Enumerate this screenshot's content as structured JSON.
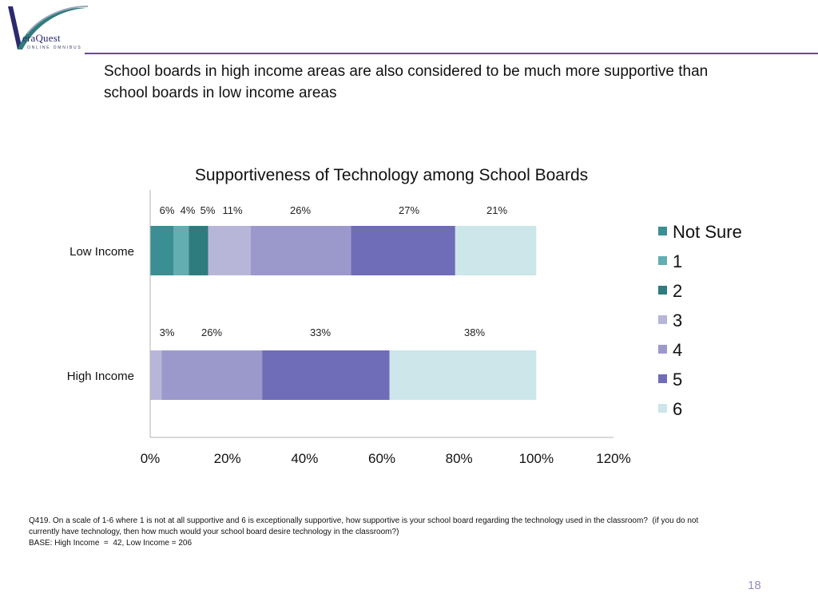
{
  "logo": {
    "text": "eraQuest",
    "subtitle": "ONLINE OMNIBUS"
  },
  "headline": "School boards in high income areas are also considered to be much more supportive than school boards in low income areas",
  "chart_data": {
    "type": "bar",
    "orientation": "horizontal",
    "stacked": true,
    "title": "Supportiveness of Technology among School Boards",
    "categories": [
      "Low Income",
      "High Income"
    ],
    "xlim": [
      0,
      120
    ],
    "x_ticks": [
      "0%",
      "20%",
      "40%",
      "60%",
      "80%",
      "100%",
      "120%"
    ],
    "legend_position": "right",
    "grid": false,
    "series": [
      {
        "name": "Not Sure",
        "values": [
          6,
          0
        ],
        "labels": [
          "6%",
          ""
        ],
        "color": "#3a8f92"
      },
      {
        "name": "1",
        "values": [
          4,
          0
        ],
        "labels": [
          "4%",
          ""
        ],
        "color": "#62aeb0"
      },
      {
        "name": "2",
        "values": [
          5,
          0
        ],
        "labels": [
          "5%",
          ""
        ],
        "color": "#2f7c7e"
      },
      {
        "name": "3",
        "values": [
          11,
          3
        ],
        "labels": [
          "11%",
          "3%"
        ],
        "color": "#b8b6d8"
      },
      {
        "name": "4",
        "values": [
          26,
          26
        ],
        "labels": [
          "26%",
          "26%"
        ],
        "color": "#9b99cc"
      },
      {
        "name": "5",
        "values": [
          27,
          33
        ],
        "labels": [
          "27%",
          "33%"
        ],
        "color": "#6f6cb8"
      },
      {
        "name": "6",
        "values": [
          21,
          38
        ],
        "labels": [
          "21%",
          "38%"
        ],
        "color": "#cce6ea"
      }
    ]
  },
  "footnote": {
    "question": "Q419. On a scale of 1-6 where 1 is not at all supportive and 6 is exceptionally supportive, how supportive is your school board regarding the technology used in the classroom?  (if you do not currently have technology, then how much would your school board desire technology in the classroom?)",
    "base": "BASE: High Income  =  42, Low Income = 206"
  },
  "page_number": "18"
}
